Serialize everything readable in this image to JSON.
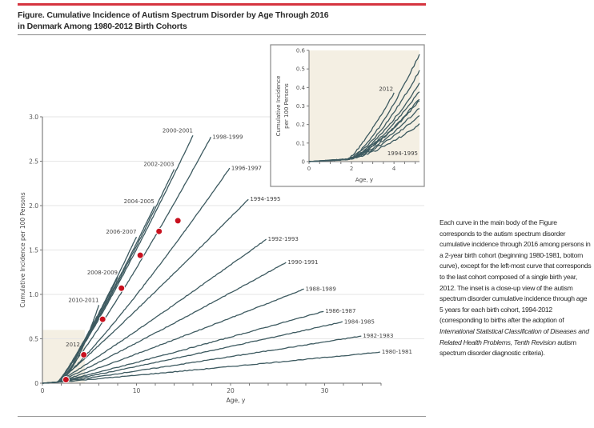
{
  "figure": {
    "title_line1": "Figure. Cumulative Incidence of Autism Spectrum Disorder by Age Through 2016",
    "title_line2": "in Denmark Among 1980-2012 Birth Cohorts",
    "note_part1": "Each curve in the main body of the Figure corresponds to the autism spectrum disorder cumulative incidence through 2016 among persons in a 2-year birth cohort (beginning 1980-1981, bottom curve), except for the left-most curve that corresponds to the last cohort composed of a single birth year, 2012. The inset is a close-up view of the autism spectrum disorder cumulative incidence through age 5 years for each birth cohort, 1994-2012 (corresponding to births after the adoption of ",
    "note_italic": "International Statistical Classification of Diseases and Related Health Problems, Tenth Revision",
    "note_part2": " autism spectrum disorder diagnostic criteria)."
  },
  "colors": {
    "accent_rule": "#d5343f",
    "curve": "#3d5a60",
    "marker": "#c8101e",
    "inset_bg": "#f4efe3",
    "grid": "#e6e6e6"
  },
  "chart_data": [
    {
      "type": "line",
      "title": "Main",
      "xlabel": "Age, y",
      "ylabel": "Cumulative Incidence per 100 Persons",
      "xlim": [
        0,
        36
      ],
      "ylim": [
        0,
        3.0
      ],
      "xticks": [
        0,
        10,
        20,
        30
      ],
      "yticks": [
        0,
        0.5,
        1.0,
        1.5,
        2.0,
        2.5,
        3.0
      ],
      "ytick_labels": [
        "0",
        "0.5",
        "1.0",
        "1.5",
        "2.0",
        "2.5",
        "3.0"
      ],
      "grid": "horizontal",
      "inset_region": {
        "x": [
          0,
          4.5
        ],
        "y": [
          0,
          0.6
        ]
      },
      "series": [
        {
          "name": "2012",
          "end_age": 4.0,
          "end_value": 0.38
        },
        {
          "name": "2010-2011",
          "end_age": 6.0,
          "end_value": 0.88
        },
        {
          "name": "2008-2009",
          "end_age": 8.0,
          "end_value": 1.19
        },
        {
          "name": "2006-2007",
          "end_age": 10.0,
          "end_value": 1.65
        },
        {
          "name": "2004-2005",
          "end_age": 11.9,
          "end_value": 1.99
        },
        {
          "name": "2002-2003",
          "end_age": 14.0,
          "end_value": 2.41
        },
        {
          "name": "2000-2001",
          "end_age": 16.0,
          "end_value": 2.79
        },
        {
          "name": "1998-1999",
          "end_age": 17.9,
          "end_value": 2.77
        },
        {
          "name": "1996-1997",
          "end_age": 19.9,
          "end_value": 2.42
        },
        {
          "name": "1994-1995",
          "end_age": 21.9,
          "end_value": 2.07
        },
        {
          "name": "1992-1993",
          "end_age": 23.8,
          "end_value": 1.62
        },
        {
          "name": "1990-1991",
          "end_age": 25.9,
          "end_value": 1.36
        },
        {
          "name": "1988-1989",
          "end_age": 27.8,
          "end_value": 1.06
        },
        {
          "name": "1986-1987",
          "end_age": 29.9,
          "end_value": 0.81
        },
        {
          "name": "1984-1985",
          "end_age": 31.9,
          "end_value": 0.69
        },
        {
          "name": "1982-1983",
          "end_age": 33.9,
          "end_value": 0.53
        },
        {
          "name": "1980-1981",
          "end_age": 35.9,
          "end_value": 0.35
        }
      ],
      "markers": [
        {
          "x": 2.5,
          "y": 0.04
        },
        {
          "x": 4.4,
          "y": 0.32
        },
        {
          "x": 6.4,
          "y": 0.72
        },
        {
          "x": 8.4,
          "y": 1.07
        },
        {
          "x": 10.4,
          "y": 1.44
        },
        {
          "x": 12.4,
          "y": 1.71
        },
        {
          "x": 14.4,
          "y": 1.83
        }
      ]
    },
    {
      "type": "line",
      "title": "Inset",
      "xlabel": "Age, y",
      "ylabel_line1": "Cumulative Incidence",
      "ylabel_line2": "per 100 Persons",
      "xlim": [
        0,
        5.2
      ],
      "ylim": [
        0,
        0.6
      ],
      "xticks": [
        0,
        2,
        4
      ],
      "yticks": [
        0,
        0.1,
        0.2,
        0.3,
        0.4,
        0.5,
        0.6
      ],
      "ytick_labels": [
        "0",
        "0.1",
        "0.2",
        "0.3",
        "0.4",
        "0.5",
        "0.6"
      ],
      "labels": [
        {
          "text": "2012",
          "series": "2012"
        },
        {
          "text": "1994-1995",
          "series": "1994-1995"
        }
      ],
      "series": [
        {
          "name": "2012",
          "end_age": 4.0,
          "end_value": 0.37
        },
        {
          "name": "2010-2011",
          "end_age": 5.2,
          "end_value": 0.58
        },
        {
          "name": "2008-2009",
          "end_age": 5.2,
          "end_value": 0.49
        },
        {
          "name": "2006-2007",
          "end_age": 5.2,
          "end_value": 0.42
        },
        {
          "name": "2004-2005",
          "end_age": 5.2,
          "end_value": 0.38
        },
        {
          "name": "2002-2003",
          "end_age": 5.2,
          "end_value": 0.34
        },
        {
          "name": "2000-2001",
          "end_age": 5.2,
          "end_value": 0.33
        },
        {
          "name": "1998-1999",
          "end_age": 5.2,
          "end_value": 0.29
        },
        {
          "name": "1996-1997",
          "end_age": 5.2,
          "end_value": 0.25
        },
        {
          "name": "1994-1995",
          "end_age": 5.2,
          "end_value": 0.2
        }
      ]
    }
  ]
}
